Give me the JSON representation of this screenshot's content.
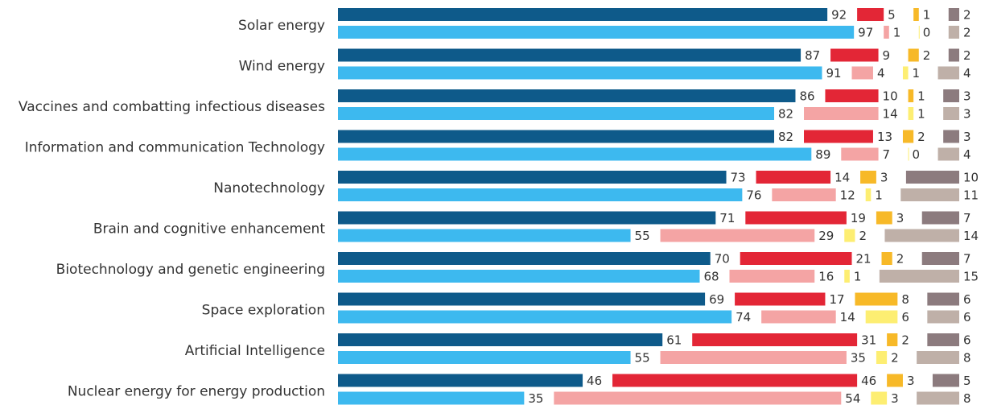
{
  "chart_data": {
    "type": "bar",
    "orientation": "horizontal",
    "stacked": true,
    "categories": [
      "Solar energy",
      "Wind energy",
      "Vaccines and combatting infectious diseases",
      "Information and communication Technology",
      "Nanotechnology",
      "Brain and cognitive enhancement",
      "Biotechnology and genetic engineering",
      "Space exploration",
      "Artificial Intelligence",
      "Nuclear energy for energy production"
    ],
    "xlim": [
      0,
      100
    ],
    "series": [
      {
        "stack": 0,
        "color": "#0e5a8a",
        "values": [
          92,
          87,
          86,
          82,
          73,
          71,
          70,
          69,
          61,
          46
        ]
      },
      {
        "stack": 0,
        "color": "#e32636",
        "values": [
          5,
          9,
          10,
          13,
          14,
          19,
          21,
          17,
          31,
          46
        ]
      },
      {
        "stack": 0,
        "color": "#f7b928",
        "values": [
          1,
          2,
          1,
          2,
          3,
          3,
          2,
          8,
          2,
          3
        ]
      },
      {
        "stack": 0,
        "color": "#8c7b7e",
        "values": [
          2,
          2,
          3,
          3,
          10,
          7,
          7,
          6,
          6,
          5
        ]
      },
      {
        "stack": 1,
        "color": "#3db9ef",
        "values": [
          97,
          91,
          82,
          89,
          76,
          55,
          68,
          74,
          55,
          35
        ]
      },
      {
        "stack": 1,
        "color": "#f4a4a4",
        "values": [
          1,
          4,
          14,
          7,
          12,
          29,
          16,
          14,
          35,
          54
        ]
      },
      {
        "stack": 1,
        "color": "#fdee72",
        "values": [
          0,
          1,
          1,
          0,
          1,
          2,
          1,
          6,
          2,
          3
        ]
      },
      {
        "stack": 1,
        "color": "#bfb0a8",
        "values": [
          2,
          4,
          3,
          4,
          11,
          14,
          15,
          6,
          8,
          8
        ]
      }
    ]
  }
}
